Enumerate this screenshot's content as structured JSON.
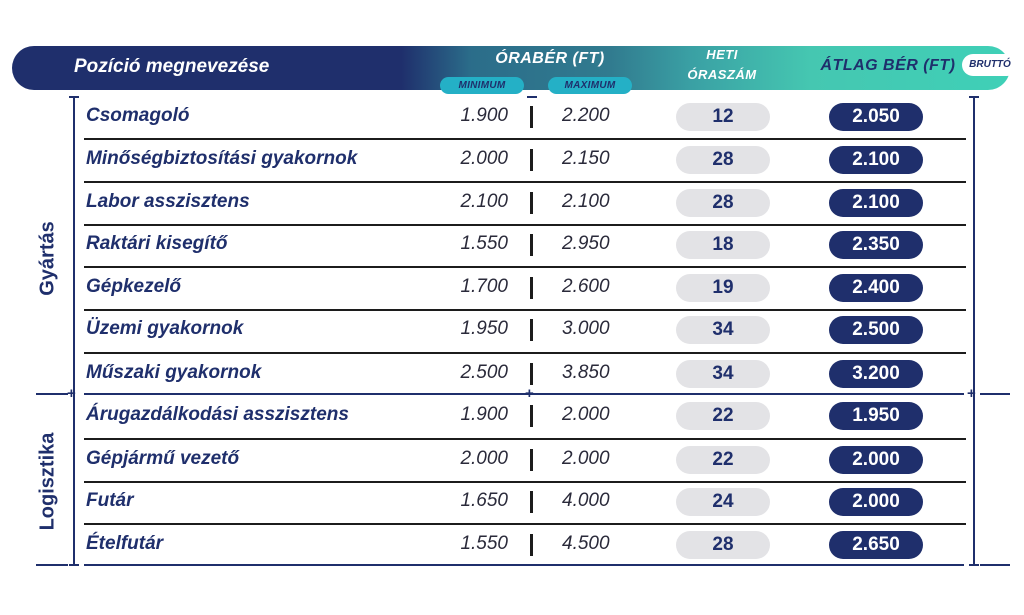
{
  "header": {
    "position_title": "Pozíció megnevezése",
    "hourly_wage_title": "ÓRABÉR (FT)",
    "minimum_label": "MINIMUM",
    "maximum_label": "MAXIMUM",
    "weekly_hours_line1": "HETI",
    "weekly_hours_line2": "ÓRASZÁM",
    "average_wage_title": "ÁTLAG BÉR (FT)",
    "gross_label": "BRUTTÓ"
  },
  "groups": [
    {
      "label": "Gyártás"
    },
    {
      "label": "Logisztika"
    }
  ],
  "rows": [
    {
      "name": "Csomagoló",
      "min": "1.900",
      "max": "2.200",
      "hours": "12",
      "avg": "2.050"
    },
    {
      "name": "Minőségbiztosítási gyakornok",
      "min": "2.000",
      "max": "2.150",
      "hours": "28",
      "avg": "2.100"
    },
    {
      "name": "Labor asszisztens",
      "min": "2.100",
      "max": "2.100",
      "hours": "28",
      "avg": "2.100"
    },
    {
      "name": "Raktári kisegítő",
      "min": "1.550",
      "max": "2.950",
      "hours": "18",
      "avg": "2.350"
    },
    {
      "name": "Gépkezelő",
      "min": "1.700",
      "max": "2.600",
      "hours": "19",
      "avg": "2.400"
    },
    {
      "name": "Üzemi gyakornok",
      "min": "1.950",
      "max": "3.000",
      "hours": "34",
      "avg": "2.500"
    },
    {
      "name": "Műszaki gyakornok",
      "min": "2.500",
      "max": "3.850",
      "hours": "34",
      "avg": "3.200"
    },
    {
      "name": "Árugazdálkodási asszisztens",
      "min": "1.900",
      "max": "2.000",
      "hours": "22",
      "avg": "1.950"
    },
    {
      "name": "Gépjármű vezető",
      "min": "2.000",
      "max": "2.000",
      "hours": "22",
      "avg": "2.000"
    },
    {
      "name": "Futár",
      "min": "1.650",
      "max": "4.000",
      "hours": "24",
      "avg": "2.000"
    },
    {
      "name": "Ételfutár",
      "min": "1.550",
      "max": "4.500",
      "hours": "28",
      "avg": "2.650"
    }
  ],
  "colors": {
    "navy": "#1f2f6c",
    "teal": "#3fd0b7",
    "pill_grey": "#e3e3e6",
    "cyan_pill": "#24b0c6"
  }
}
